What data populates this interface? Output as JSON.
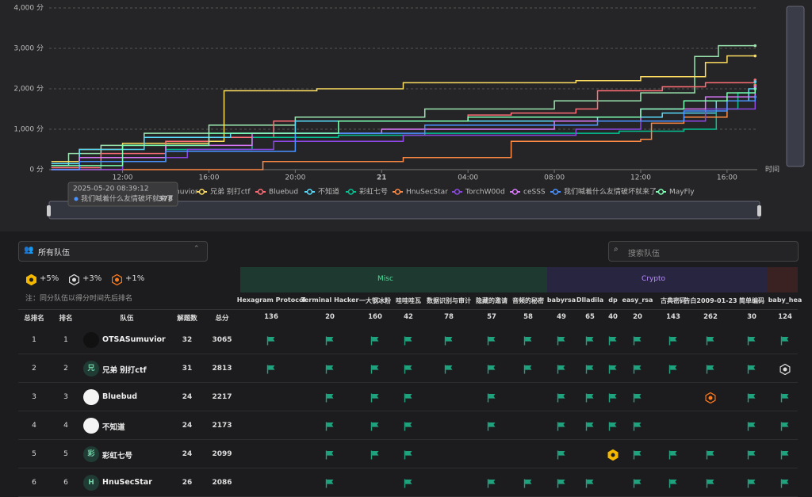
{
  "chart_data": {
    "type": "line",
    "step": true,
    "x_label": "时间",
    "xlim": [
      8.6,
      41.4
    ],
    "ylim": [
      0,
      4000
    ],
    "xticks": [
      {
        "value": 12,
        "label": "12:00"
      },
      {
        "value": 16,
        "label": "16:00"
      },
      {
        "value": 20,
        "label": "20:00"
      },
      {
        "value": 24,
        "label": "21"
      },
      {
        "value": 28,
        "label": "04:00"
      },
      {
        "value": 32,
        "label": "08:00"
      },
      {
        "value": 36,
        "label": "12:00"
      },
      {
        "value": 40,
        "label": "16:00"
      }
    ],
    "yticks": [
      {
        "value": 0,
        "label": "0 分"
      },
      {
        "value": 1000,
        "label": "1,000 分"
      },
      {
        "value": 2000,
        "label": "2,000 分"
      },
      {
        "value": 3000,
        "label": "3,000 分"
      },
      {
        "value": 4000,
        "label": "4,000 分"
      }
    ],
    "grid": true,
    "tooltip": {
      "time": "2025-05-20 08:39:12",
      "name": "我们喊着什么友情破坏就来了",
      "value": 378
    },
    "series": [
      {
        "name": "OTSASumuvior",
        "color": "#9be6b0",
        "x": [
          8.7,
          9.5,
          11,
          13,
          16,
          20,
          26,
          32,
          36,
          38.5,
          39.6,
          41.3
        ],
        "values": [
          100,
          400,
          600,
          900,
          1100,
          1300,
          1500,
          1700,
          1900,
          2800,
          3065,
          3065
        ]
      },
      {
        "name": "兄弟 别打ctf",
        "color": "#fddd60",
        "x": [
          8.7,
          10,
          12,
          16,
          16.7,
          21,
          25,
          33,
          36,
          39,
          40,
          41.3
        ],
        "values": [
          200,
          500,
          650,
          700,
          1950,
          2000,
          2150,
          2200,
          2300,
          2650,
          2813,
          2813
        ]
      },
      {
        "name": "Bluebud",
        "color": "#ff6e76",
        "x": [
          8.7,
          11,
          14,
          16,
          19,
          28,
          30,
          33,
          34,
          37,
          39,
          41.3
        ],
        "values": [
          50,
          400,
          700,
          800,
          1200,
          1350,
          1400,
          1500,
          1950,
          2050,
          2150,
          2217
        ]
      },
      {
        "name": "不知道",
        "color": "#58d9f9",
        "x": [
          8.7,
          10,
          13,
          17,
          20,
          28,
          34,
          37,
          39.5,
          41,
          41.3
        ],
        "values": [
          150,
          500,
          800,
          900,
          1200,
          1200,
          1300,
          1400,
          1700,
          2000,
          2173
        ]
      },
      {
        "name": "彩虹七号",
        "color": "#05c091",
        "x": [
          8.7,
          11,
          14,
          18,
          22,
          26,
          35,
          38,
          39.5,
          40.5,
          41.3
        ],
        "values": [
          0,
          200,
          500,
          800,
          850,
          900,
          950,
          1000,
          1500,
          1900,
          2099
        ]
      },
      {
        "name": "HnuSecStar",
        "color": "#ff8a45",
        "x": [
          8.7,
          18,
          18.5,
          25,
          30,
          36,
          36.5,
          38,
          40,
          41.3
        ],
        "values": [
          0,
          0,
          200,
          300,
          700,
          750,
          1150,
          1300,
          1800,
          2086
        ]
      },
      {
        "name": "TorchW00d",
        "color": "#8d48e3",
        "x": [
          8.7,
          12,
          15,
          19,
          25,
          33,
          36,
          39,
          41.3
        ],
        "values": [
          0,
          300,
          500,
          700,
          850,
          1000,
          1200,
          1500,
          2000
        ]
      },
      {
        "name": "ceSSS",
        "color": "#dd79ff",
        "x": [
          8.7,
          10,
          14,
          18,
          24,
          32,
          36,
          39,
          41.3
        ],
        "values": [
          0,
          300,
          600,
          900,
          1000,
          1200,
          1500,
          1800,
          2050
        ]
      },
      {
        "name": "我们喊着什么友情破坏就来了",
        "color": "#4992ff",
        "x": [
          8.7,
          10,
          14,
          20,
          26,
          34,
          38,
          40,
          41.3
        ],
        "values": [
          0,
          200,
          450,
          900,
          1100,
          1200,
          1450,
          1700,
          1800
        ]
      },
      {
        "name": "MayFly",
        "color": "#7cffb2",
        "x": [
          8.7,
          12,
          16,
          22,
          28,
          36,
          38,
          40,
          41.3
        ],
        "values": [
          100,
          600,
          900,
          1200,
          1300,
          1500,
          1700,
          1900,
          2000
        ]
      }
    ]
  },
  "toolbar": {
    "filter": "所有队伍",
    "search_placeholder": "搜索队伍"
  },
  "bonus": [
    "+5%",
    "+3%",
    "+1%"
  ],
  "note": "注：同分队伍以得分时间先后排名",
  "categories": [
    "Misc",
    "Crypto"
  ],
  "columns": [
    "总排名",
    "排名",
    "队伍",
    "解题数",
    "总分"
  ],
  "challenges": [
    {
      "name": "Hexagram Protocol",
      "score": 136
    },
    {
      "name": "Terminal Hacker",
      "score": 20
    },
    {
      "name": "一大钢冰粉",
      "score": 160
    },
    {
      "name": "哇哇哇瓦",
      "score": 42
    },
    {
      "name": "数据识别与审计",
      "score": 78
    },
    {
      "name": "隐藏的邀请",
      "score": 57
    },
    {
      "name": "音频的秘密",
      "score": 58
    },
    {
      "name": "babyrsa",
      "score": 49
    },
    {
      "name": "DIladila",
      "score": 65
    },
    {
      "name": "dp",
      "score": 40
    },
    {
      "name": "easy_rsa",
      "score": 20
    },
    {
      "name": "古典密码",
      "score": 143
    },
    {
      "name": "告白2009-01-23",
      "score": 262
    },
    {
      "name": "简单编码",
      "score": 30
    },
    {
      "name": "baby_hea",
      "score": 124
    }
  ],
  "teams": [
    {
      "rank": 1,
      "rank2": 1,
      "avatar": null,
      "name": "OTSASumuvior",
      "solved": 32,
      "score": 3065,
      "cells": [
        "flag",
        "flag",
        "flag",
        "flag",
        "flag",
        "flag",
        "flag",
        "flag",
        "flag",
        "flag",
        "flag",
        "flag",
        "flag",
        "flag",
        "flag"
      ]
    },
    {
      "rank": 2,
      "rank2": 2,
      "avatar": "兄",
      "name": "兄弟 别打ctf",
      "solved": 31,
      "score": 2813,
      "cells": [
        "flag",
        "flag",
        "flag",
        "flag",
        "flag",
        "flag",
        "flag",
        "flag",
        "flag",
        "flag",
        "flag",
        "flag",
        "flag",
        "flag",
        "silver"
      ]
    },
    {
      "rank": 3,
      "rank2": 3,
      "avatar": null,
      "name": "Bluebud",
      "solved": 24,
      "score": 2217,
      "cells": [
        null,
        "flag",
        "flag",
        "flag",
        null,
        "flag",
        null,
        "flag",
        "flag",
        "flag",
        "flag",
        null,
        "bronze",
        "flag",
        "flag"
      ]
    },
    {
      "rank": 4,
      "rank2": 4,
      "avatar": null,
      "name": "不知道",
      "solved": 24,
      "score": 2173,
      "cells": [
        null,
        "flag",
        "flag",
        "flag",
        null,
        "flag",
        null,
        "flag",
        "flag",
        "flag",
        "flag",
        null,
        null,
        "flag",
        "flag"
      ]
    },
    {
      "rank": 5,
      "rank2": 5,
      "avatar": "彩",
      "name": "彩虹七号",
      "solved": 24,
      "score": 2099,
      "cells": [
        null,
        "flag",
        "flag",
        "flag",
        null,
        null,
        null,
        "flag",
        null,
        "gold",
        "flag",
        "flag",
        "flag",
        "flag",
        "flag"
      ]
    },
    {
      "rank": 6,
      "rank2": 6,
      "avatar": "H",
      "name": "HnuSecStar",
      "solved": 26,
      "score": 2086,
      "cells": [
        null,
        "flag",
        null,
        "flag",
        null,
        "flag",
        "flag",
        "flag",
        "flag",
        null,
        "flag",
        "flag",
        "flag",
        "flag",
        "flag"
      ]
    }
  ]
}
